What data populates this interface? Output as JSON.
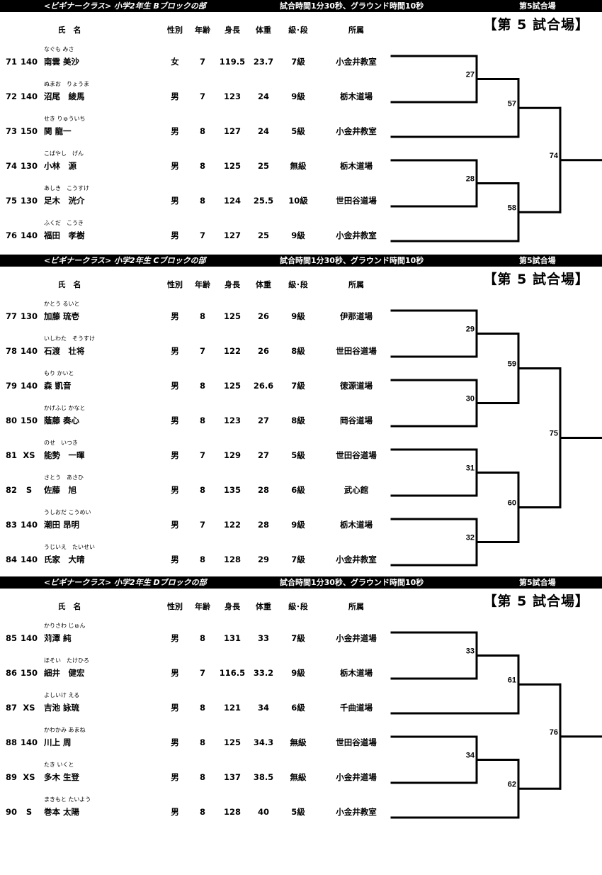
{
  "columns": {
    "name": "氏　名",
    "sex": "性別",
    "age": "年齢",
    "height": "身長",
    "weight": "体重",
    "rank": "級･段",
    "dojo": "所属"
  },
  "blocks": [
    {
      "class_label": "<ビギナークラス>  小学2年生  Bブロックの部",
      "time_label": "試合時間1分30秒、グラウンド時間10秒",
      "court_label": "第5試合場",
      "stamp": "【第 5 試合場】",
      "rows": [
        {
          "num": "71",
          "code": "140",
          "furigana": "なぐも みさ",
          "name": "南雲 美沙",
          "sex": "女",
          "age": "7",
          "height": "119.5",
          "weight": "23.7",
          "rank": "7級",
          "dojo": "小金井教室"
        },
        {
          "num": "72",
          "code": "140",
          "furigana": "ぬまお　りょうま",
          "name": "沼尾　綾馬",
          "sex": "男",
          "age": "7",
          "height": "123",
          "weight": "24",
          "rank": "9級",
          "dojo": "栃木道場"
        },
        {
          "num": "73",
          "code": "150",
          "furigana": "せき りゅういち",
          "name": "関 龍一",
          "sex": "男",
          "age": "8",
          "height": "127",
          "weight": "24",
          "rank": "5級",
          "dojo": "小金井教室"
        },
        {
          "num": "74",
          "code": "130",
          "furigana": "こばやし　げん",
          "name": "小林　源",
          "sex": "男",
          "age": "8",
          "height": "125",
          "weight": "25",
          "rank": "無級",
          "dojo": "栃木道場"
        },
        {
          "num": "75",
          "code": "130",
          "furigana": "あしき　こうすけ",
          "name": "足木　洸介",
          "sex": "男",
          "age": "8",
          "height": "124",
          "weight": "25.5",
          "rank": "10級",
          "dojo": "世田谷道場"
        },
        {
          "num": "76",
          "code": "140",
          "furigana": "ふくだ　こうき",
          "name": "福田　孝樹",
          "sex": "男",
          "age": "7",
          "height": "127",
          "weight": "25",
          "rank": "9級",
          "dojo": "小金井教室"
        }
      ],
      "bracket": {
        "no": "74",
        "a": {
          "no": "57",
          "a": {
            "no": "27",
            "a": 0,
            "b": 1
          },
          "b": 2
        },
        "b": {
          "no": "58",
          "a": {
            "no": "28",
            "a": 3,
            "b": 4
          },
          "b": 5
        }
      }
    },
    {
      "class_label": "<ビギナークラス>  小学2年生  Cブロックの部",
      "time_label": "試合時間1分30秒、グラウンド時間10秒",
      "court_label": "第5試合場",
      "stamp": "【第 5 試合場】",
      "rows": [
        {
          "num": "77",
          "code": "130",
          "furigana": "かとう るいと",
          "name": "加藤 琉壱",
          "sex": "男",
          "age": "8",
          "height": "125",
          "weight": "26",
          "rank": "9級",
          "dojo": "伊那道場"
        },
        {
          "num": "78",
          "code": "140",
          "furigana": "いしわた　そうすけ",
          "name": "石渡　壮将",
          "sex": "男",
          "age": "7",
          "height": "122",
          "weight": "26",
          "rank": "8級",
          "dojo": "世田谷道場"
        },
        {
          "num": "79",
          "code": "140",
          "furigana": "もり かいと",
          "name": "森 凱音",
          "sex": "男",
          "age": "8",
          "height": "125",
          "weight": "26.6",
          "rank": "7級",
          "dojo": "徳源道場"
        },
        {
          "num": "80",
          "code": "150",
          "furigana": "かげふじ かなと",
          "name": "蔭藤 奏心",
          "sex": "男",
          "age": "8",
          "height": "123",
          "weight": "27",
          "rank": "8級",
          "dojo": "岡谷道場"
        },
        {
          "num": "81",
          "code": "XS",
          "furigana": "のせ　いつき",
          "name": "能勢　一暉",
          "sex": "男",
          "age": "7",
          "height": "129",
          "weight": "27",
          "rank": "5級",
          "dojo": "世田谷道場"
        },
        {
          "num": "82",
          "code": "S",
          "furigana": "さとう　あさひ",
          "name": "佐藤　旭",
          "sex": "男",
          "age": "8",
          "height": "135",
          "weight": "28",
          "rank": "6級",
          "dojo": "武心館"
        },
        {
          "num": "83",
          "code": "140",
          "furigana": "うしおだ こうめい",
          "name": "潮田 昂明",
          "sex": "男",
          "age": "7",
          "height": "122",
          "weight": "28",
          "rank": "9級",
          "dojo": "栃木道場"
        },
        {
          "num": "84",
          "code": "140",
          "furigana": "うじいえ　たいせい",
          "name": "氏家　大晴",
          "sex": "男",
          "age": "8",
          "height": "128",
          "weight": "29",
          "rank": "7級",
          "dojo": "小金井教室"
        }
      ],
      "bracket": {
        "no": "75",
        "a": {
          "no": "59",
          "a": {
            "no": "29",
            "a": 0,
            "b": 1
          },
          "b": {
            "no": "30",
            "a": 2,
            "b": 3
          }
        },
        "b": {
          "no": "60",
          "a": {
            "no": "31",
            "a": 4,
            "b": 5
          },
          "b": {
            "no": "32",
            "a": 6,
            "b": 7
          }
        }
      }
    },
    {
      "class_label": "<ビギナークラス>  小学2年生  Dブロックの部",
      "time_label": "試合時間1分30秒、グラウンド時間10秒",
      "court_label": "第5試合場",
      "stamp": "【第 5 試合場】",
      "rows": [
        {
          "num": "85",
          "code": "140",
          "furigana": "かりさわ じゅん",
          "name": "苅澤 純",
          "sex": "男",
          "age": "8",
          "height": "131",
          "weight": "33",
          "rank": "7級",
          "dojo": "小金井道場"
        },
        {
          "num": "86",
          "code": "150",
          "furigana": "ほそい　たけひろ",
          "name": "細井　健宏",
          "sex": "男",
          "age": "7",
          "height": "116.5",
          "weight": "33.2",
          "rank": "9級",
          "dojo": "栃木道場"
        },
        {
          "num": "87",
          "code": "XS",
          "furigana": "よしいけ える",
          "name": "吉池 詠琉",
          "sex": "男",
          "age": "8",
          "height": "121",
          "weight": "34",
          "rank": "6級",
          "dojo": "千曲道場"
        },
        {
          "num": "88",
          "code": "140",
          "furigana": "かわかみ あまね",
          "name": "川上 周",
          "sex": "男",
          "age": "8",
          "height": "125",
          "weight": "34.3",
          "rank": "無級",
          "dojo": "世田谷道場"
        },
        {
          "num": "89",
          "code": "XS",
          "furigana": "たき いくと",
          "name": "多木 生登",
          "sex": "男",
          "age": "8",
          "height": "137",
          "weight": "38.5",
          "rank": "無級",
          "dojo": "小金井道場"
        },
        {
          "num": "90",
          "code": "S",
          "furigana": "まきもと たいよう",
          "name": "巻本 太陽",
          "sex": "男",
          "age": "8",
          "height": "128",
          "weight": "40",
          "rank": "5級",
          "dojo": "小金井教室"
        }
      ],
      "bracket": {
        "no": "76",
        "a": {
          "no": "61",
          "a": {
            "no": "33",
            "a": 0,
            "b": 1
          },
          "b": 2
        },
        "b": {
          "no": "62",
          "a": {
            "no": "34",
            "a": 3,
            "b": 4
          },
          "b": 5
        }
      }
    }
  ]
}
